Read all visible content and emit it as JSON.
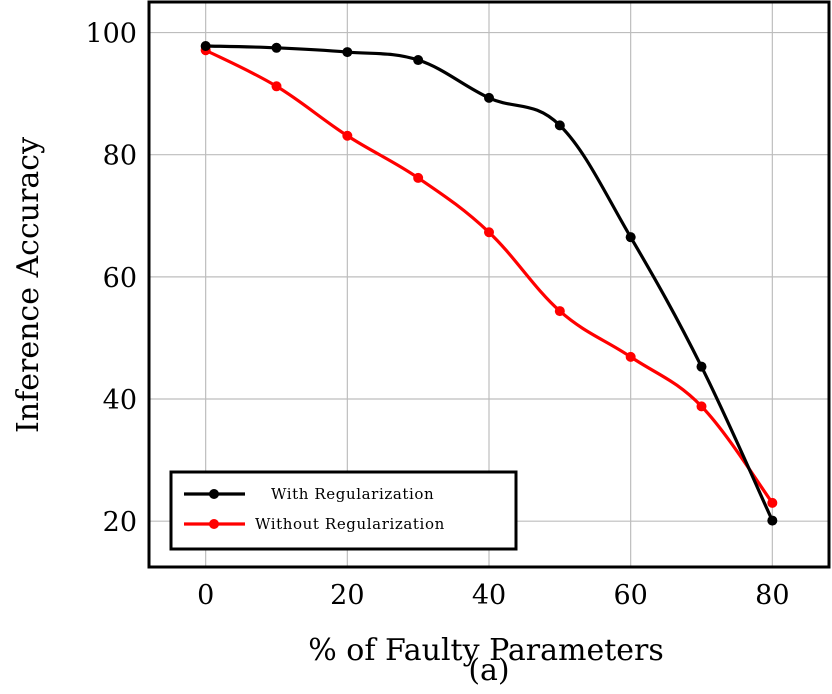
{
  "chart_data": {
    "type": "line",
    "xlabel": "% of Faulty Parameters",
    "ylabel": "Inference Accuracy",
    "caption": "(a)",
    "xlim": [
      -8,
      88
    ],
    "ylim": [
      12.5,
      105
    ],
    "xticks": [
      0,
      20,
      40,
      60,
      80
    ],
    "yticks": [
      20,
      40,
      60,
      80,
      100
    ],
    "grid": true,
    "legend_position": "bottom-left",
    "x": [
      0,
      10,
      20,
      30,
      40,
      50,
      60,
      70,
      80
    ],
    "series": [
      {
        "name": "With Regularization",
        "color": "#000000",
        "values": [
          97.8,
          97.5,
          96.8,
          95.5,
          89.3,
          84.8,
          66.5,
          45.3,
          20.1
        ]
      },
      {
        "name": "Without Regularization",
        "color": "#ff0000",
        "values": [
          97.1,
          91.2,
          83.1,
          76.2,
          67.3,
          54.4,
          46.9,
          38.8,
          23.0
        ]
      }
    ]
  }
}
